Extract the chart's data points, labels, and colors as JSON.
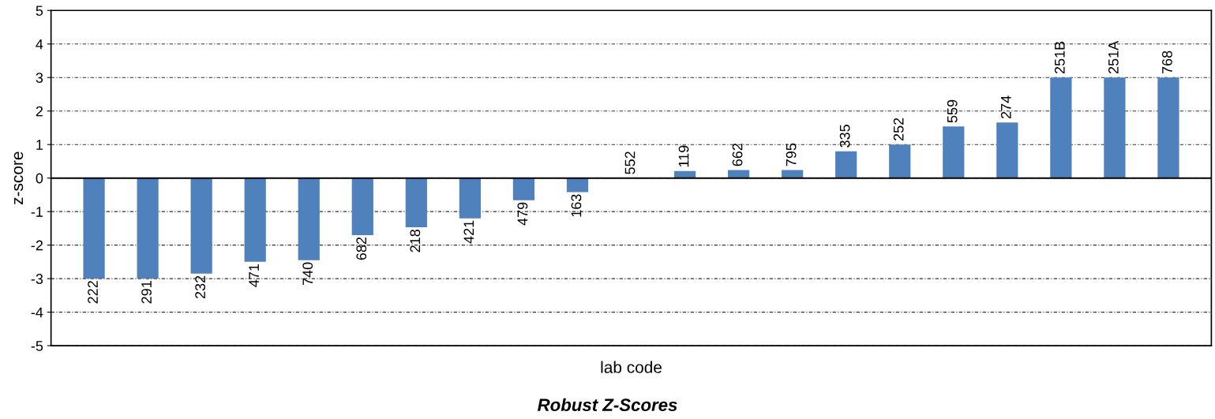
{
  "chart_data": {
    "type": "bar",
    "title": "Robust Z-Scores",
    "xlabel": "lab code",
    "ylabel": "z-score",
    "categories": [
      "222",
      "291",
      "232",
      "471",
      "740",
      "682",
      "218",
      "421",
      "479",
      "163",
      "552",
      "119",
      "662",
      "795",
      "335",
      "252",
      "559",
      "274",
      "251B",
      "251A",
      "768"
    ],
    "values": [
      -3.0,
      -3.0,
      -2.85,
      -2.5,
      -2.45,
      -1.7,
      -1.47,
      -1.2,
      -0.66,
      -0.42,
      0,
      0.21,
      0.24,
      0.24,
      0.8,
      1.0,
      1.54,
      1.66,
      3.0,
      3.0,
      3.0
    ],
    "color": "#4f81bd",
    "ylim": [
      -5,
      5
    ],
    "yticks": [
      -5,
      -4,
      -3,
      -2,
      -1,
      0,
      1,
      2,
      3,
      4,
      5
    ],
    "grid": "y",
    "tick_labels": "y"
  }
}
